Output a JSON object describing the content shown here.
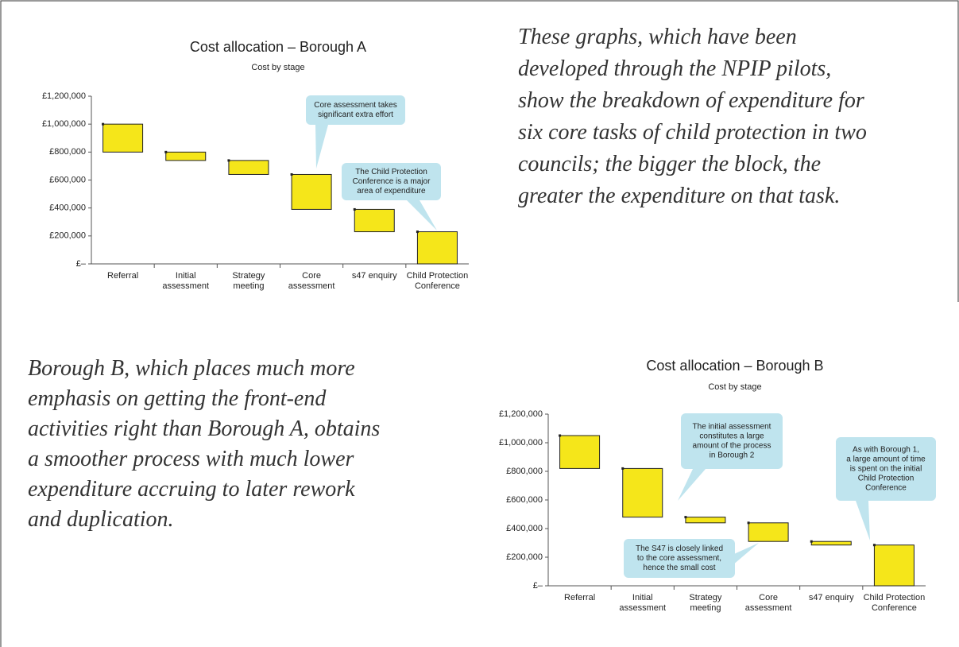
{
  "paragraphs": [
    [
      "These graphs, which have been",
      "developed through the NPIP pilots,",
      "show the breakdown of expenditure for",
      "six core tasks of child protection in two",
      "councils; the bigger the block, the",
      "greater the expenditure on that task."
    ],
    [
      "Borough B, which places much more",
      "emphasis on getting the front-end",
      "activities right than Borough A, obtains",
      "a smoother process with much lower",
      "expenditure accruing to later rework",
      "and duplication."
    ]
  ],
  "chart_data": [
    {
      "type": "waterfall",
      "title": "Cost allocation – Borough A",
      "subtitle": "Cost by stage",
      "categories": [
        [
          "Referral"
        ],
        [
          "Initial",
          "assessment"
        ],
        [
          "Strategy",
          "meeting"
        ],
        [
          "Core",
          "assessment"
        ],
        [
          "s47 enquiry"
        ],
        [
          "Child Protection",
          "Conference"
        ]
      ],
      "values": [
        200000,
        60000,
        100000,
        250000,
        160000,
        230000
      ],
      "color": "#f5e61a",
      "ylim": [
        0,
        1200000
      ],
      "yticks": [
        {
          "value": 0,
          "label": "£–"
        },
        {
          "value": 200000,
          "label": "£200,000"
        },
        {
          "value": 400000,
          "label": "£400,000"
        },
        {
          "value": 600000,
          "label": "£600,000"
        },
        {
          "value": 800000,
          "label": "£800,000"
        },
        {
          "value": 1000000,
          "label": "£1,000,000"
        },
        {
          "value": 1200000,
          "label": "£1,200,000"
        }
      ],
      "annotations": [
        [
          "Core assessment takes",
          "significant extra effort"
        ],
        [
          "The Child Protection",
          "Conference is a major",
          "area of expenditure"
        ]
      ]
    },
    {
      "type": "waterfall",
      "title": "Cost allocation – Borough B",
      "subtitle": "Cost by stage",
      "categories": [
        [
          "Referral"
        ],
        [
          "Initial",
          "assessment"
        ],
        [
          "Strategy",
          "meeting"
        ],
        [
          "Core",
          "assessment"
        ],
        [
          "s47 enquiry"
        ],
        [
          "Child Protection",
          "Conference"
        ]
      ],
      "values": [
        230000,
        340000,
        40000,
        130000,
        25000,
        285000
      ],
      "color": "#f5e61a",
      "ylim": [
        0,
        1200000
      ],
      "yticks": [
        {
          "value": 0,
          "label": "£–"
        },
        {
          "value": 200000,
          "label": "£200,000"
        },
        {
          "value": 400000,
          "label": "£400,000"
        },
        {
          "value": 600000,
          "label": "£600,000"
        },
        {
          "value": 800000,
          "label": "£800,000"
        },
        {
          "value": 1000000,
          "label": "£1,000,000"
        },
        {
          "value": 1200000,
          "label": "£1,200,000"
        }
      ],
      "annotations": [
        [
          "The initial assessment",
          "constitutes a large",
          "amount of the process",
          "in Borough 2"
        ],
        [
          "As with Borough 1,",
          "a large amount of time",
          "is spent on the initial",
          "Child Protection",
          "Conference"
        ],
        [
          "The S47 is closely linked",
          "to the core assessment,",
          "hence the small cost"
        ]
      ]
    }
  ]
}
